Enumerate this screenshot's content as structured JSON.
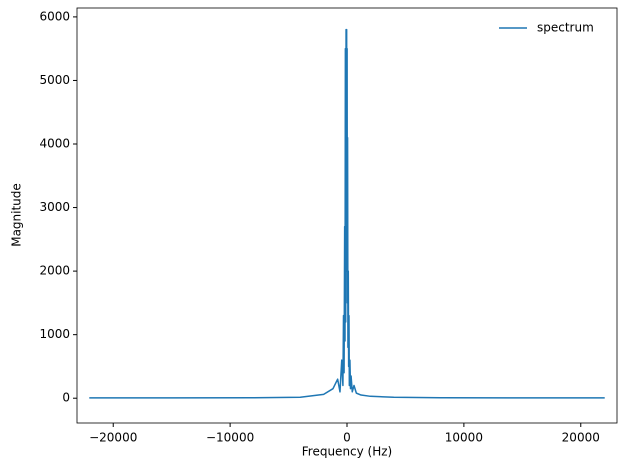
{
  "chart_data": {
    "type": "line",
    "x_label": "Frequency (Hz)",
    "y_label": "Magnitude",
    "x": [
      -22050,
      -15000,
      -8000,
      -4000,
      -2000,
      -1200,
      -800,
      -600,
      -450,
      -350,
      -300,
      -250,
      -200,
      -170,
      -140,
      -110,
      -80,
      -50,
      -30,
      -10,
      0,
      10,
      30,
      50,
      80,
      110,
      140,
      170,
      200,
      250,
      300,
      350,
      450,
      600,
      800,
      1200,
      2000,
      4000,
      8000,
      15000,
      22050
    ],
    "series": [
      {
        "name": "spectrum",
        "color": "#1f77b4",
        "values": [
          5,
          5,
          8,
          15,
          60,
          150,
          300,
          100,
          600,
          200,
          1300,
          400,
          2700,
          900,
          5500,
          1200,
          5800,
          2000,
          5800,
          3000,
          4200,
          5500,
          1500,
          4100,
          800,
          2000,
          500,
          1300,
          200,
          600,
          150,
          350,
          100,
          200,
          80,
          50,
          30,
          15,
          8,
          5,
          5
        ]
      }
    ],
    "xlim": [
      -23100,
      23100
    ],
    "ylim": [
      -390,
      6140
    ],
    "xticks": [
      {
        "value": -20000,
        "label": "−20000"
      },
      {
        "value": -10000,
        "label": "−10000"
      },
      0,
      10000,
      20000
    ],
    "yticks": [
      0,
      1000,
      2000,
      3000,
      4000,
      5000,
      6000
    ],
    "legend": "upper right",
    "grid": false
  }
}
